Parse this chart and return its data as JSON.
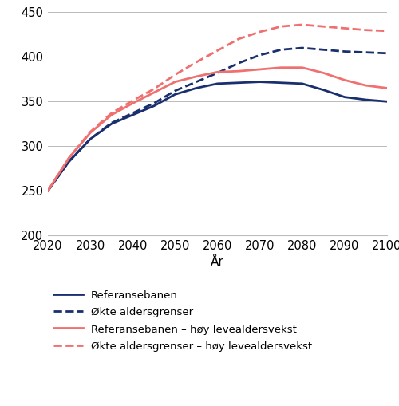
{
  "years": [
    2020,
    2025,
    2030,
    2035,
    2040,
    2045,
    2050,
    2055,
    2060,
    2065,
    2070,
    2075,
    2080,
    2085,
    2090,
    2095,
    2100
  ],
  "referansebanen": [
    250,
    283,
    308,
    325,
    335,
    345,
    358,
    365,
    370,
    371,
    372,
    371,
    370,
    363,
    355,
    352,
    350
  ],
  "okte_aldersgrenser": [
    250,
    283,
    308,
    326,
    337,
    348,
    362,
    372,
    382,
    393,
    402,
    408,
    410,
    408,
    406,
    405,
    404
  ],
  "referansebanen_hoy": [
    250,
    287,
    315,
    335,
    348,
    360,
    372,
    378,
    383,
    384,
    386,
    388,
    388,
    382,
    374,
    368,
    365
  ],
  "okte_aldersgrenser_hoy": [
    250,
    287,
    316,
    337,
    351,
    364,
    380,
    394,
    407,
    420,
    428,
    434,
    436,
    434,
    432,
    430,
    429
  ],
  "color_dark_navy": "#1a2f6e",
  "color_salmon": "#f07070",
  "ylim": [
    200,
    450
  ],
  "yticks": [
    200,
    250,
    300,
    350,
    400,
    450
  ],
  "xticks": [
    2020,
    2030,
    2040,
    2050,
    2060,
    2070,
    2080,
    2090,
    2100
  ],
  "xlabel": "År",
  "legend_labels": [
    "Referansebanen",
    "Økte aldersgrenser",
    "Referansebanen – høy levealdersvekst",
    "Økte aldersgrenser – høy levealdersvekst"
  ],
  "background_color": "#ffffff",
  "grid_color": "#bbbbbb",
  "linewidth": 2.0
}
